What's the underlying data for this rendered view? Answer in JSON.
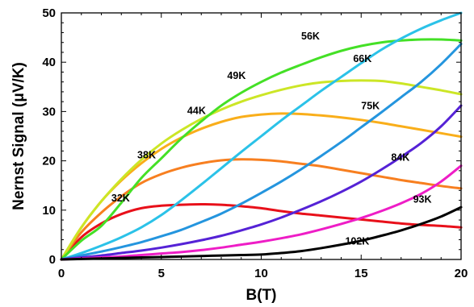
{
  "chart_data": {
    "type": "line",
    "title": "",
    "xlabel": "B(T)",
    "ylabel": "Nernst Signal (μV/K)",
    "xlim": [
      0,
      20
    ],
    "ylim": [
      0,
      50
    ],
    "x_ticks": [
      "0",
      "5",
      "10",
      "15",
      "20"
    ],
    "y_ticks": [
      "0",
      "10",
      "20",
      "30",
      "40",
      "50"
    ],
    "grid": false,
    "legend": "inline labels",
    "x": [
      0,
      1,
      2,
      3,
      4,
      5,
      6,
      7,
      8,
      9,
      10,
      11,
      12,
      13,
      14,
      15,
      16,
      17,
      18,
      19,
      20
    ],
    "series": [
      {
        "name": "32K",
        "color": "#e8101a",
        "values": [
          0,
          4.5,
          7.3,
          9.2,
          10.4,
          10.9,
          11.1,
          11.2,
          11.1,
          10.8,
          10.4,
          9.8,
          9.3,
          8.9,
          8.5,
          8.1,
          7.7,
          7.3,
          7.0,
          6.8,
          6.5
        ]
      },
      {
        "name": "38K",
        "color": "#f77f20",
        "values": [
          0,
          5.5,
          9.5,
          12.8,
          15.5,
          17.3,
          18.6,
          19.5,
          20.1,
          20.3,
          20.2,
          19.9,
          19.4,
          18.9,
          18.2,
          17.5,
          16.8,
          16.1,
          15.5,
          14.9,
          14.4
        ]
      },
      {
        "name": "44K",
        "color": "#f9ae1a",
        "values": [
          0,
          6.5,
          11.8,
          16.0,
          19.5,
          22.4,
          24.7,
          26.5,
          27.9,
          28.9,
          29.4,
          29.6,
          29.5,
          29.2,
          28.8,
          28.3,
          27.7,
          27.0,
          26.3,
          25.6,
          24.9
        ]
      },
      {
        "name": "49K",
        "color": "#cce626",
        "values": [
          0,
          6.5,
          11.8,
          16.3,
          20.2,
          23.5,
          26.2,
          28.5,
          30.4,
          32.0,
          33.3,
          34.4,
          35.3,
          35.9,
          36.2,
          36.3,
          36.2,
          35.7,
          35.0,
          34.3,
          33.5
        ]
      },
      {
        "name": "56K",
        "color": "#44e026",
        "values": [
          0,
          3.8,
          6.8,
          11.5,
          16.5,
          20.5,
          24.5,
          28.0,
          31.2,
          33.8,
          36.0,
          37.9,
          39.5,
          41.0,
          42.3,
          43.3,
          44.0,
          44.4,
          44.6,
          44.6,
          44.4
        ]
      },
      {
        "name": "66K",
        "color": "#2bc2e8",
        "values": [
          0,
          1.3,
          2.8,
          4.5,
          6.5,
          9.0,
          12.0,
          15.2,
          18.5,
          21.8,
          25.0,
          28.2,
          31.2,
          34.2,
          37.0,
          39.8,
          42.5,
          44.8,
          46.8,
          48.5,
          50.0
        ]
      },
      {
        "name": "75K",
        "color": "#2495de",
        "values": [
          0,
          0.8,
          1.6,
          2.5,
          3.5,
          4.7,
          6.0,
          7.6,
          9.3,
          11.3,
          13.5,
          15.8,
          18.3,
          21.0,
          23.8,
          26.8,
          29.8,
          32.9,
          36.0,
          39.6,
          43.7
        ]
      },
      {
        "name": "84K",
        "color": "#5522d6",
        "values": [
          0,
          0.4,
          0.8,
          1.3,
          1.8,
          2.4,
          3.1,
          3.9,
          4.8,
          5.9,
          7.1,
          8.5,
          10.1,
          11.8,
          13.7,
          15.8,
          18.2,
          20.8,
          23.6,
          27.0,
          31.2
        ]
      },
      {
        "name": "93K",
        "color": "#ee1dc6",
        "values": [
          0,
          0.2,
          0.4,
          0.6,
          0.9,
          1.2,
          1.5,
          1.9,
          2.4,
          3.0,
          3.6,
          4.3,
          5.1,
          6.1,
          7.2,
          8.4,
          9.8,
          11.4,
          13.3,
          15.8,
          19.0
        ]
      },
      {
        "name": "102K",
        "color": "#000000",
        "values": [
          0,
          0.1,
          0.2,
          0.3,
          0.4,
          0.5,
          0.6,
          0.7,
          0.8,
          0.9,
          1.0,
          1.3,
          1.7,
          2.3,
          3.0,
          3.8,
          4.8,
          5.9,
          7.2,
          8.7,
          10.6
        ]
      }
    ],
    "annotations": [
      {
        "text": "32K",
        "x": 2.5,
        "y": 11.8
      },
      {
        "text": "38K",
        "x": 3.8,
        "y": 20.5
      },
      {
        "text": "44K",
        "x": 6.3,
        "y": 29.5
      },
      {
        "text": "49K",
        "x": 8.3,
        "y": 36.6
      },
      {
        "text": "56K",
        "x": 12.0,
        "y": 44.6
      },
      {
        "text": "66K",
        "x": 14.6,
        "y": 40.0
      },
      {
        "text": "75K",
        "x": 15.0,
        "y": 30.5
      },
      {
        "text": "84K",
        "x": 16.5,
        "y": 20.0
      },
      {
        "text": "93K",
        "x": 17.6,
        "y": 11.5
      },
      {
        "text": "102K",
        "x": 14.2,
        "y": 3.0
      }
    ]
  }
}
